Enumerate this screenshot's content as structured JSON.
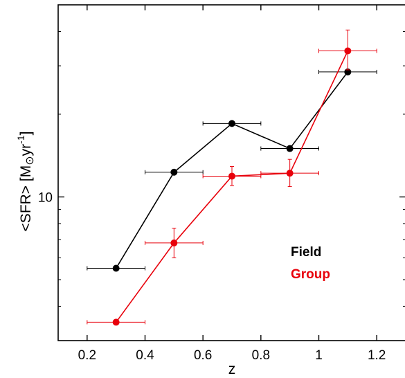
{
  "chart_data": {
    "type": "line",
    "xlabel": "z",
    "ylabel": "<SFR> [M⊙yr-1]",
    "ylabel_parts": {
      "main": "<SFR> [M",
      "sun": "⊙",
      "yr": "yr",
      "exp": "-1",
      "close": "]"
    },
    "xlim": [
      0.1,
      1.3
    ],
    "ylim_log": [
      3.0,
      50.0
    ],
    "y_scale": "log",
    "x_ticks": [
      0.2,
      0.4,
      0.6,
      0.8,
      1.0,
      1.2
    ],
    "x_tick_labels": [
      "0.2",
      "0.4",
      "0.6",
      "0.8",
      "1",
      "1.2"
    ],
    "y_major_ticks": [
      10
    ],
    "y_major_tick_labels": [
      "10"
    ],
    "y_minor_ticks": [
      4,
      5,
      6,
      7,
      8,
      9,
      20,
      30,
      40
    ],
    "legend_position": "lower-right",
    "series": [
      {
        "name": "Field",
        "color": "#000000",
        "x": [
          0.3,
          0.5,
          0.7,
          0.9,
          1.1
        ],
        "xerr": [
          0.1,
          0.1,
          0.1,
          0.1,
          0.1
        ],
        "y": [
          5.5,
          12.3,
          18.5,
          15.0,
          28.5
        ],
        "yerr_low": [
          0,
          0,
          0,
          0,
          0
        ],
        "yerr_high": [
          0,
          0,
          0,
          0,
          0
        ]
      },
      {
        "name": "Group",
        "color": "#e8000b",
        "x": [
          0.3,
          0.5,
          0.7,
          0.9,
          1.1
        ],
        "xerr": [
          0.1,
          0.1,
          0.1,
          0.1,
          0.1
        ],
        "y": [
          3.5,
          6.8,
          11.9,
          12.2,
          34.0
        ],
        "yerr_low": [
          0,
          0.8,
          0.9,
          1.3,
          5.0
        ],
        "yerr_high": [
          0,
          0.9,
          1.0,
          1.5,
          6.5
        ]
      }
    ]
  }
}
